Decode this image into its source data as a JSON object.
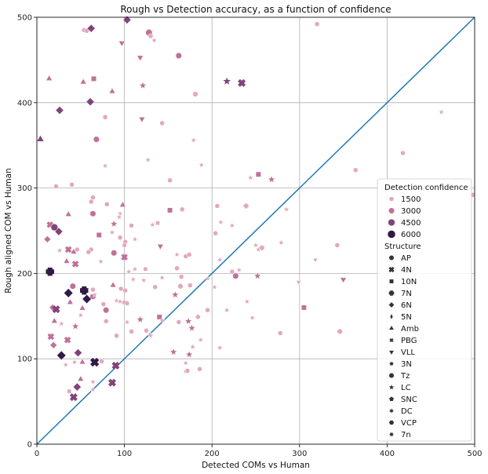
{
  "chart_data": {
    "type": "scatter",
    "title": "Rough vs Detection accuracy, as a function of confidence",
    "xlabel": "Detected COMs vs Human",
    "ylabel": "Rough aligned COM vs Human",
    "xlim": [
      0,
      500
    ],
    "ylim": [
      0,
      500
    ],
    "x_ticks": [
      0,
      100,
      200,
      300,
      400,
      500
    ],
    "y_ticks": [
      0,
      100,
      200,
      300,
      400,
      500
    ],
    "grid": true,
    "reference_line": {
      "from": [
        0,
        0
      ],
      "to": [
        500,
        500
      ],
      "color": "#1f77b4"
    },
    "legend": {
      "placement": "lower-right",
      "size_title": "Detection confidence",
      "size_entries": [
        {
          "label": "1500",
          "level": 1500
        },
        {
          "label": "3000",
          "level": 3000
        },
        {
          "label": "4500",
          "level": 4500
        },
        {
          "label": "6000",
          "level": 6000
        }
      ],
      "marker_title": "Structure",
      "marker_entries": [
        {
          "label": "AP",
          "marker": "circle"
        },
        {
          "label": "4N",
          "marker": "x"
        },
        {
          "label": "10N",
          "marker": "square"
        },
        {
          "label": "7N",
          "marker": "plus"
        },
        {
          "label": "6N",
          "marker": "diamond"
        },
        {
          "label": "5N",
          "marker": "thin-diamond"
        },
        {
          "label": "Amb",
          "marker": "triangle-up"
        },
        {
          "label": "PBG",
          "marker": "x-small"
        },
        {
          "label": "VLL",
          "marker": "triangle-down"
        },
        {
          "label": "3N",
          "marker": "star8"
        },
        {
          "label": "Tz",
          "marker": "octagon"
        },
        {
          "label": "LC",
          "marker": "star"
        },
        {
          "label": "SNC",
          "marker": "pentagon"
        },
        {
          "label": "DC",
          "marker": "star6"
        },
        {
          "label": "VCP",
          "marker": "hexagon"
        },
        {
          "label": "7n",
          "marker": "star8"
        }
      ]
    },
    "colors": {
      "1500": "#e2a8bd",
      "3000": "#c07199",
      "4500": "#80437a",
      "6000": "#2f1b45",
      "line": "#1f77b4",
      "grid": "#b0b0b0"
    },
    "points": [
      {
        "x": 4,
        "y": 357,
        "c": 4500,
        "m": "triangle-up"
      },
      {
        "x": 14,
        "y": 428,
        "c": 3000,
        "m": "triangle-up"
      },
      {
        "x": 26,
        "y": 391,
        "c": 4500,
        "m": "diamond"
      },
      {
        "x": 22,
        "y": 302,
        "c": 1500,
        "m": "circle"
      },
      {
        "x": 40,
        "y": 304,
        "c": 1500,
        "m": "circle"
      },
      {
        "x": 53,
        "y": 424,
        "c": 3000,
        "m": "triangle-up"
      },
      {
        "x": 54,
        "y": 485,
        "c": 1500,
        "m": "circle"
      },
      {
        "x": 57,
        "y": 484,
        "c": 1500,
        "m": "circle"
      },
      {
        "x": 62,
        "y": 487,
        "c": 4500,
        "m": "diamond"
      },
      {
        "x": 61,
        "y": 401,
        "c": 4500,
        "m": "diamond"
      },
      {
        "x": 65,
        "y": 428,
        "c": 3000,
        "m": "square"
      },
      {
        "x": 78,
        "y": 383,
        "c": 1500,
        "m": "circle"
      },
      {
        "x": 86,
        "y": 413,
        "c": 3000,
        "m": "triangle-up"
      },
      {
        "x": 103,
        "y": 497,
        "c": 4500,
        "m": "diamond"
      },
      {
        "x": 97,
        "y": 470,
        "c": 3000,
        "m": "triangle-down"
      },
      {
        "x": 118,
        "y": 453,
        "c": 3000,
        "m": "triangle-down"
      },
      {
        "x": 128,
        "y": 482,
        "c": 3000,
        "m": "plus"
      },
      {
        "x": 130,
        "y": 478,
        "c": 1500,
        "m": "octagon"
      },
      {
        "x": 134,
        "y": 473,
        "c": 1500,
        "m": "star"
      },
      {
        "x": 162,
        "y": 455,
        "c": 3000,
        "m": "circle"
      },
      {
        "x": 121,
        "y": 420,
        "c": 3000,
        "m": "star"
      },
      {
        "x": 120,
        "y": 381,
        "c": 3000,
        "m": "triangle-down"
      },
      {
        "x": 143,
        "y": 376,
        "c": 1500,
        "m": "circle"
      },
      {
        "x": 217,
        "y": 425,
        "c": 4500,
        "m": "star"
      },
      {
        "x": 234,
        "y": 423,
        "c": 4500,
        "m": "x"
      },
      {
        "x": 181,
        "y": 410,
        "c": 1500,
        "m": "plus"
      },
      {
        "x": 320,
        "y": 492,
        "c": 1500,
        "m": "circle"
      },
      {
        "x": 68,
        "y": 357,
        "c": 3000,
        "m": "circle"
      },
      {
        "x": 78,
        "y": 326,
        "c": 1500,
        "m": "star"
      },
      {
        "x": 127,
        "y": 333,
        "c": 1500,
        "m": "star"
      },
      {
        "x": 179,
        "y": 356,
        "c": 1500,
        "m": "star"
      },
      {
        "x": 188,
        "y": 327,
        "c": 1500,
        "m": "star"
      },
      {
        "x": 244,
        "y": 312,
        "c": 1500,
        "m": "star"
      },
      {
        "x": 253,
        "y": 316,
        "c": 3000,
        "m": "square"
      },
      {
        "x": 268,
        "y": 310,
        "c": 3000,
        "m": "star"
      },
      {
        "x": 152,
        "y": 309,
        "c": 1500,
        "m": "circle"
      },
      {
        "x": 364,
        "y": 321,
        "c": 1500,
        "m": "circle"
      },
      {
        "x": 418,
        "y": 341,
        "c": 1500,
        "m": "circle"
      },
      {
        "x": 462,
        "y": 389,
        "c": 1500,
        "m": "star"
      },
      {
        "x": 498,
        "y": 292,
        "c": 1500,
        "m": "circle"
      },
      {
        "x": 64,
        "y": 289,
        "c": 1500,
        "m": "circle"
      },
      {
        "x": 62,
        "y": 284,
        "c": 1500,
        "m": "circle"
      },
      {
        "x": 80,
        "y": 281,
        "c": 1500,
        "m": "circle"
      },
      {
        "x": 98,
        "y": 280,
        "c": 3000,
        "m": "triangle-up"
      },
      {
        "x": 95,
        "y": 270,
        "c": 1500,
        "m": "star"
      },
      {
        "x": 94,
        "y": 266,
        "c": 1500,
        "m": "star"
      },
      {
        "x": 64,
        "y": 270,
        "c": 3000,
        "m": "circle"
      },
      {
        "x": 36,
        "y": 269,
        "c": 3000,
        "m": "triangle-up"
      },
      {
        "x": 15,
        "y": 257,
        "c": 3000,
        "m": "x"
      },
      {
        "x": 20,
        "y": 254,
        "c": 4500,
        "m": "circle"
      },
      {
        "x": 25,
        "y": 249,
        "c": 4500,
        "m": "diamond"
      },
      {
        "x": 12,
        "y": 240,
        "c": 3000,
        "m": "diamond"
      },
      {
        "x": 88,
        "y": 258,
        "c": 3000,
        "m": "star"
      },
      {
        "x": 108,
        "y": 256,
        "c": 1500,
        "m": "circle"
      },
      {
        "x": 132,
        "y": 257,
        "c": 1500,
        "m": "star"
      },
      {
        "x": 138,
        "y": 259,
        "c": 1500,
        "m": "square"
      },
      {
        "x": 152,
        "y": 274,
        "c": 3000,
        "m": "square"
      },
      {
        "x": 166,
        "y": 275,
        "c": 1500,
        "m": "circle"
      },
      {
        "x": 206,
        "y": 279,
        "c": 1500,
        "m": "circle"
      },
      {
        "x": 210,
        "y": 260,
        "c": 1500,
        "m": "star"
      },
      {
        "x": 223,
        "y": 256,
        "c": 1500,
        "m": "star"
      },
      {
        "x": 239,
        "y": 279,
        "c": 1500,
        "m": "plus"
      },
      {
        "x": 285,
        "y": 275,
        "c": 1500,
        "m": "star"
      },
      {
        "x": 204,
        "y": 247,
        "c": 1500,
        "m": "circle"
      },
      {
        "x": 71,
        "y": 245,
        "c": 3000,
        "m": "square"
      },
      {
        "x": 86,
        "y": 248,
        "c": 1500,
        "m": "star"
      },
      {
        "x": 95,
        "y": 242,
        "c": 1500,
        "m": "circle"
      },
      {
        "x": 101,
        "y": 237,
        "c": 1500,
        "m": "circle"
      },
      {
        "x": 100,
        "y": 233,
        "c": 1500,
        "m": "square"
      },
      {
        "x": 112,
        "y": 240,
        "c": 1500,
        "m": "star"
      },
      {
        "x": 141,
        "y": 232,
        "c": 3000,
        "m": "triangle-down"
      },
      {
        "x": 26,
        "y": 227,
        "c": 1500,
        "m": "star"
      },
      {
        "x": 36,
        "y": 228,
        "c": 3000,
        "m": "x"
      },
      {
        "x": 42,
        "y": 225,
        "c": 3000,
        "m": "triangle-up"
      },
      {
        "x": 46,
        "y": 228,
        "c": 1500,
        "m": "circle"
      },
      {
        "x": 62,
        "y": 228,
        "c": 1500,
        "m": "circle"
      },
      {
        "x": 59,
        "y": 225,
        "c": 1500,
        "m": "circle"
      },
      {
        "x": 88,
        "y": 224,
        "c": 3000,
        "m": "circle"
      },
      {
        "x": 34,
        "y": 214,
        "c": 3000,
        "m": "triangle-up"
      },
      {
        "x": 44,
        "y": 211,
        "c": 3000,
        "m": "x"
      },
      {
        "x": 73,
        "y": 214,
        "c": 1500,
        "m": "star"
      },
      {
        "x": 100,
        "y": 219,
        "c": 3000,
        "m": "x"
      },
      {
        "x": 160,
        "y": 222,
        "c": 1500,
        "m": "star"
      },
      {
        "x": 170,
        "y": 220,
        "c": 1500,
        "m": "circle"
      },
      {
        "x": 174,
        "y": 222,
        "c": 1500,
        "m": "circle"
      },
      {
        "x": 209,
        "y": 216,
        "c": 1500,
        "m": "star"
      },
      {
        "x": 250,
        "y": 233,
        "c": 1500,
        "m": "star"
      },
      {
        "x": 253,
        "y": 228,
        "c": 1500,
        "m": "star"
      },
      {
        "x": 257,
        "y": 230,
        "c": 1500,
        "m": "plus"
      },
      {
        "x": 279,
        "y": 236,
        "c": 1500,
        "m": "star"
      },
      {
        "x": 343,
        "y": 233,
        "c": 1500,
        "m": "circle"
      },
      {
        "x": 318,
        "y": 216,
        "c": 1500,
        "m": "triangle-down"
      },
      {
        "x": 15,
        "y": 202,
        "c": 6000,
        "m": "plus"
      },
      {
        "x": 112,
        "y": 205,
        "c": 1500,
        "m": "star"
      },
      {
        "x": 124,
        "y": 205,
        "c": 1500,
        "m": "square"
      },
      {
        "x": 105,
        "y": 202,
        "c": 1500,
        "m": "star"
      },
      {
        "x": 160,
        "y": 206,
        "c": 1500,
        "m": "circle"
      },
      {
        "x": 165,
        "y": 196,
        "c": 1500,
        "m": "circle"
      },
      {
        "x": 223,
        "y": 202,
        "c": 1500,
        "m": "circle"
      },
      {
        "x": 231,
        "y": 204,
        "c": 1500,
        "m": "star"
      },
      {
        "x": 227,
        "y": 197,
        "c": 3000,
        "m": "circle"
      },
      {
        "x": 252,
        "y": 197,
        "c": 3000,
        "m": "star"
      },
      {
        "x": 299,
        "y": 190,
        "c": 1500,
        "m": "triangle-down"
      },
      {
        "x": 350,
        "y": 193,
        "c": 3000,
        "m": "triangle-down"
      },
      {
        "x": 41,
        "y": 185,
        "c": 3000,
        "m": "circle"
      },
      {
        "x": 64,
        "y": 181,
        "c": 1500,
        "m": "circle"
      },
      {
        "x": 36,
        "y": 177,
        "c": 6000,
        "m": "diamond"
      },
      {
        "x": 54,
        "y": 180,
        "c": 6000,
        "m": "plus"
      },
      {
        "x": 57,
        "y": 170,
        "c": 6000,
        "m": "diamond"
      },
      {
        "x": 38,
        "y": 166,
        "c": 3000,
        "m": "triangle-up"
      },
      {
        "x": 64,
        "y": 173,
        "c": 3000,
        "m": "circle"
      },
      {
        "x": 66,
        "y": 175,
        "c": 1500,
        "m": "star"
      },
      {
        "x": 87,
        "y": 186,
        "c": 3000,
        "m": "triangle-up"
      },
      {
        "x": 96,
        "y": 182,
        "c": 1500,
        "m": "circle"
      },
      {
        "x": 101,
        "y": 180,
        "c": 1500,
        "m": "circle"
      },
      {
        "x": 110,
        "y": 193,
        "c": 1500,
        "m": "star"
      },
      {
        "x": 122,
        "y": 192,
        "c": 1500,
        "m": "star"
      },
      {
        "x": 135,
        "y": 184,
        "c": 1500,
        "m": "circle"
      },
      {
        "x": 143,
        "y": 195,
        "c": 1500,
        "m": "star"
      },
      {
        "x": 164,
        "y": 185,
        "c": 1500,
        "m": "plus"
      },
      {
        "x": 175,
        "y": 186,
        "c": 1500,
        "m": "circle"
      },
      {
        "x": 195,
        "y": 194,
        "c": 1500,
        "m": "star"
      },
      {
        "x": 203,
        "y": 184,
        "c": 1500,
        "m": "star"
      },
      {
        "x": 158,
        "y": 175,
        "c": 3000,
        "m": "star"
      },
      {
        "x": 91,
        "y": 168,
        "c": 1500,
        "m": "star"
      },
      {
        "x": 95,
        "y": 167,
        "c": 1500,
        "m": "star"
      },
      {
        "x": 100,
        "y": 166,
        "c": 1500,
        "m": "circle"
      },
      {
        "x": 103,
        "y": 165,
        "c": 1500,
        "m": "circle"
      },
      {
        "x": 79,
        "y": 157,
        "c": 3000,
        "m": "circle"
      },
      {
        "x": 76,
        "y": 164,
        "c": 1500,
        "m": "circle"
      },
      {
        "x": 52,
        "y": 159,
        "c": 3000,
        "m": "triangle-up"
      },
      {
        "x": 18,
        "y": 160,
        "c": 3000,
        "m": "diamond"
      },
      {
        "x": 22,
        "y": 158,
        "c": 4500,
        "m": "x"
      },
      {
        "x": 50,
        "y": 151,
        "c": 1500,
        "m": "star"
      },
      {
        "x": 20,
        "y": 144,
        "c": 3000,
        "m": "triangle-up"
      },
      {
        "x": 28,
        "y": 141,
        "c": 1500,
        "m": "star"
      },
      {
        "x": 44,
        "y": 138,
        "c": 3000,
        "m": "star"
      },
      {
        "x": 79,
        "y": 144,
        "c": 1500,
        "m": "circle"
      },
      {
        "x": 103,
        "y": 143,
        "c": 1500,
        "m": "star"
      },
      {
        "x": 118,
        "y": 146,
        "c": 3000,
        "m": "star"
      },
      {
        "x": 140,
        "y": 149,
        "c": 3000,
        "m": "square"
      },
      {
        "x": 143,
        "y": 145,
        "c": 1500,
        "m": "star"
      },
      {
        "x": 173,
        "y": 144,
        "c": 3000,
        "m": "star"
      },
      {
        "x": 162,
        "y": 143,
        "c": 1500,
        "m": "circle"
      },
      {
        "x": 184,
        "y": 149,
        "c": 1500,
        "m": "circle"
      },
      {
        "x": 195,
        "y": 157,
        "c": 1500,
        "m": "circle"
      },
      {
        "x": 217,
        "y": 157,
        "c": 1500,
        "m": "star"
      },
      {
        "x": 240,
        "y": 167,
        "c": 1500,
        "m": "star"
      },
      {
        "x": 246,
        "y": 148,
        "c": 1500,
        "m": "star"
      },
      {
        "x": 305,
        "y": 160,
        "c": 3000,
        "m": "square"
      },
      {
        "x": 91,
        "y": 127,
        "c": 1500,
        "m": "circle"
      },
      {
        "x": 108,
        "y": 132,
        "c": 1500,
        "m": "circle"
      },
      {
        "x": 125,
        "y": 133,
        "c": 1500,
        "m": "circle"
      },
      {
        "x": 130,
        "y": 127,
        "c": 1500,
        "m": "star"
      },
      {
        "x": 177,
        "y": 136,
        "c": 3000,
        "m": "star"
      },
      {
        "x": 187,
        "y": 122,
        "c": 1500,
        "m": "star"
      },
      {
        "x": 16,
        "y": 126,
        "c": 3000,
        "m": "x"
      },
      {
        "x": 35,
        "y": 122,
        "c": 3000,
        "m": "x"
      },
      {
        "x": 19,
        "y": 116,
        "c": 3000,
        "m": "diamond"
      },
      {
        "x": 178,
        "y": 114,
        "c": 1500,
        "m": "star"
      },
      {
        "x": 209,
        "y": 113,
        "c": 1500,
        "m": "star"
      },
      {
        "x": 278,
        "y": 130,
        "c": 1500,
        "m": "circle"
      },
      {
        "x": 346,
        "y": 132,
        "c": 1500,
        "m": "plus"
      },
      {
        "x": 28,
        "y": 104,
        "c": 6000,
        "m": "diamond"
      },
      {
        "x": 47,
        "y": 107,
        "c": 4500,
        "m": "diamond"
      },
      {
        "x": 52,
        "y": 96,
        "c": 3000,
        "m": "triangle-up"
      },
      {
        "x": 33,
        "y": 93,
        "c": 1500,
        "m": "star"
      },
      {
        "x": 43,
        "y": 96,
        "c": 1500,
        "m": "star"
      },
      {
        "x": 66,
        "y": 96,
        "c": 6000,
        "m": "x"
      },
      {
        "x": 74,
        "y": 97,
        "c": 1500,
        "m": "circle"
      },
      {
        "x": 90,
        "y": 92,
        "c": 4500,
        "m": "x"
      },
      {
        "x": 156,
        "y": 108,
        "c": 3000,
        "m": "star"
      },
      {
        "x": 174,
        "y": 105,
        "c": 3000,
        "m": "star"
      },
      {
        "x": 170,
        "y": 95,
        "c": 1500,
        "m": "star"
      },
      {
        "x": 170,
        "y": 85,
        "c": 1500,
        "m": "star"
      },
      {
        "x": 172,
        "y": 86,
        "c": 1500,
        "m": "circle"
      },
      {
        "x": 186,
        "y": 88,
        "c": 1500,
        "m": "circle"
      },
      {
        "x": 50,
        "y": 76,
        "c": 3000,
        "m": "triangle-up"
      },
      {
        "x": 46,
        "y": 67,
        "c": 4500,
        "m": "diamond"
      },
      {
        "x": 37,
        "y": 62,
        "c": 1500,
        "m": "square"
      },
      {
        "x": 42,
        "y": 55,
        "c": 4500,
        "m": "x"
      },
      {
        "x": 64,
        "y": 73,
        "c": 1500,
        "m": "star"
      },
      {
        "x": 64,
        "y": 64,
        "c": 1500,
        "m": "star"
      },
      {
        "x": 86,
        "y": 72,
        "c": 4500,
        "m": "x"
      }
    ]
  }
}
